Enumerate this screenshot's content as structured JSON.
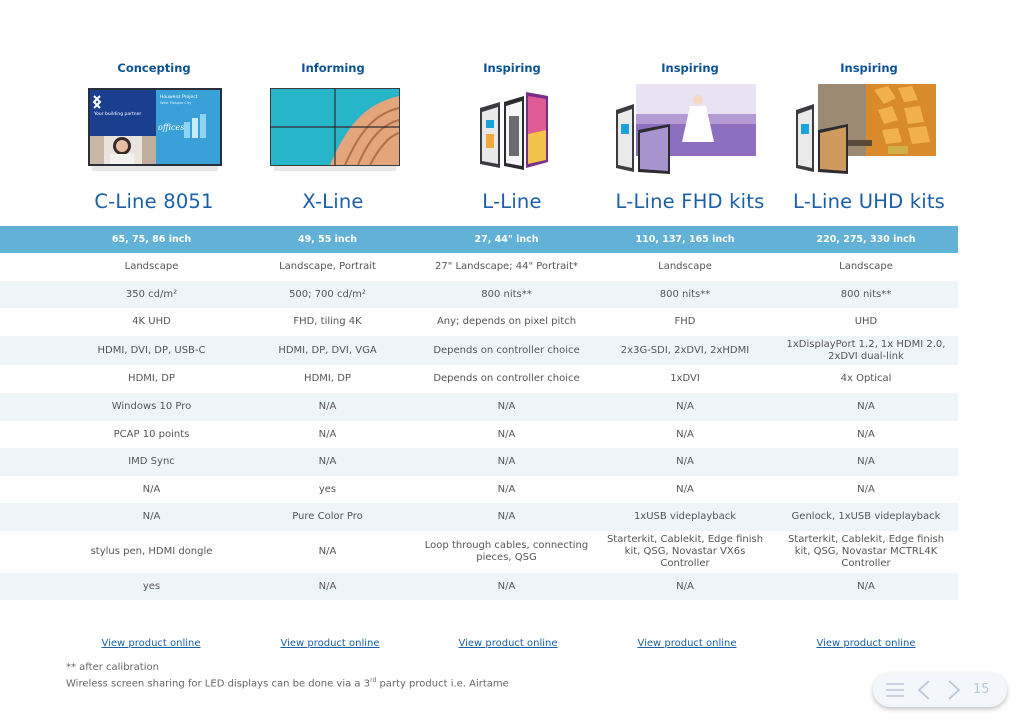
{
  "categories": [
    "Concepting",
    "Informing",
    "Inspiring",
    "Inspiring",
    "Inspiring"
  ],
  "products": [
    "C-Line 8051",
    "X-Line",
    "L-Line",
    "L-Line FHD kits",
    "L-Line UHD kits"
  ],
  "image_text": {
    "brand_line": "Your building partner",
    "project_title": "Houwenz Project",
    "project_sub": "West Mosque City",
    "graffiti": "offices"
  },
  "spec_header": [
    "65, 75, 86 inch",
    "49, 55 inch",
    "27, 44\" inch",
    "110, 137, 165 inch",
    "220, 275, 330 inch"
  ],
  "spec_rows": [
    [
      "Landscape",
      "Landscape, Portrait",
      "27\" Landscape; 44\" Portrait*",
      "Landscape",
      "Landscape"
    ],
    [
      "350 cd/m²",
      "500; 700 cd/m²",
      "800 nits**",
      "800 nits**",
      "800 nits**"
    ],
    [
      "4K UHD",
      "FHD, tiling 4K",
      "Any; depends on pixel pitch",
      "FHD",
      "UHD"
    ],
    [
      "HDMI, DVI, DP, USB-C",
      "HDMI, DP, DVI, VGA",
      "Depends on controller choice",
      "2x3G-SDI, 2xDVI, 2xHDMI",
      "1xDisplayPort 1.2, 1x HDMI 2.0, 2xDVI dual-link"
    ],
    [
      "HDMI, DP",
      "HDMI, DP",
      "Depends on controller choice",
      "1xDVI",
      "4x Optical"
    ],
    [
      "Windows 10 Pro",
      "N/A",
      "N/A",
      "N/A",
      "N/A"
    ],
    [
      "PCAP 10 points",
      "N/A",
      "N/A",
      "N/A",
      "N/A"
    ],
    [
      "IMD Sync",
      "N/A",
      "N/A",
      "N/A",
      "N/A"
    ],
    [
      "N/A",
      "yes",
      "N/A",
      "N/A",
      "N/A"
    ],
    [
      "N/A",
      "Pure Color Pro",
      "N/A",
      "1xUSB videplayback",
      "Genlock, 1xUSB videplayback"
    ],
    [
      "stylus pen, HDMI dongle",
      "N/A",
      "Loop through cables, connecting pieces, QSG",
      "Starterkit, Cablekit, Edge finish kit, QSG, Novastar VX6s Controller",
      "Starterkit, Cablekit, Edge finish kit, QSG, Novastar MCTRL4K Controller"
    ],
    [
      "yes",
      "N/A",
      "N/A",
      "N/A",
      "N/A"
    ]
  ],
  "link_label": "View product online",
  "footnotes": {
    "line1": "** after calibration",
    "line2_pre": "Wireless screen sharing for LED displays can be done via a 3",
    "line2_sup": "rd",
    "line2_post": " party product i.e. Airtame"
  },
  "nav": {
    "page_number": "15",
    "menu_icon": "hamburger-menu-icon",
    "prev_icon": "chevron-left-icon",
    "next_icon": "chevron-right-icon"
  },
  "colors": {
    "header_band": "#61b2d6",
    "stripe": "#eef5f9",
    "accent_text": "#1a5fa8",
    "category_text": "#0b5394"
  }
}
